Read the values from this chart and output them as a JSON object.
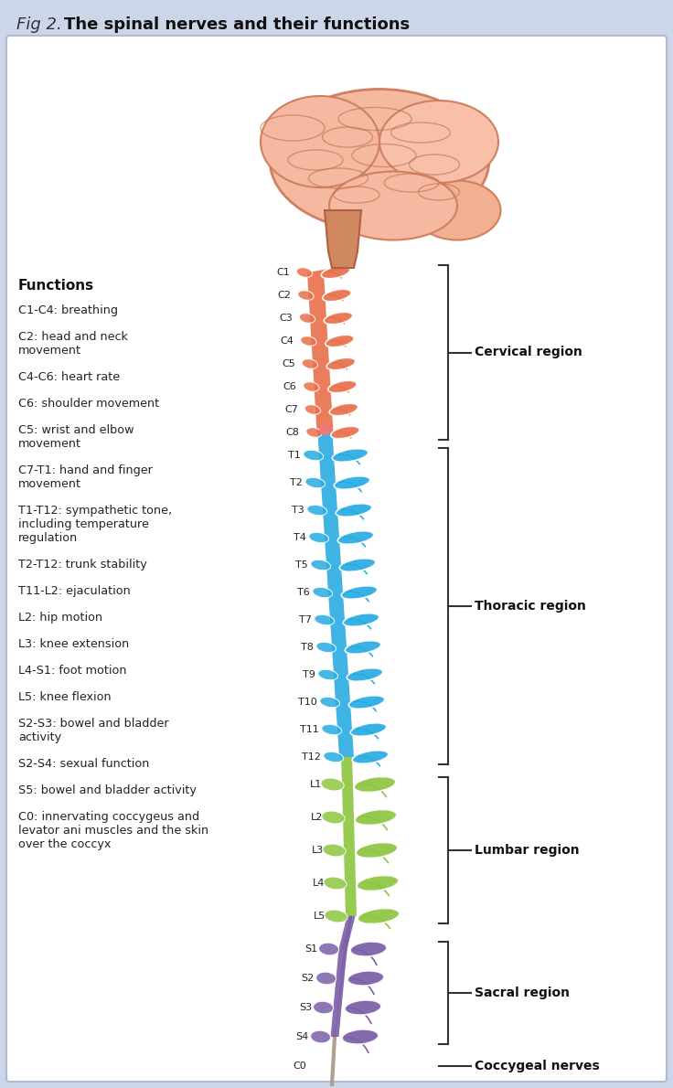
{
  "title_plain": "Fig 2. ",
  "title_bold": "The spinal nerves and their functions",
  "bg_color": "#cdd5e8",
  "panel_bg": "#ffffff",
  "functions_label": "Functions",
  "functions": [
    "C1-C4: breathing",
    "C2: head and neck\nmovement",
    "C4-C6: heart rate",
    "C6: shoulder movement",
    "C5: wrist and elbow\nmovement",
    "C7-T1: hand and finger\nmovement",
    "T1-T12: sympathetic tone,\nincluding temperature\nregulation",
    "T2-T12: trunk stability",
    "T11-L2: ejaculation",
    "L2: hip motion",
    "L3: knee extension",
    "L4-S1: foot motion",
    "L5: knee flexion",
    "S2-S3: bowel and bladder\nactivity",
    "S2-S4: sexual function",
    "S5: bowel and bladder activity",
    "C0: innervating coccygeus and\nlevator ani muscles and the skin\nover the coccyx"
  ],
  "cervical_labels": [
    "C1",
    "C2",
    "C3",
    "C4",
    "C5",
    "C6",
    "C7",
    "C8"
  ],
  "thoracic_labels": [
    "T1",
    "T2",
    "T3",
    "T4",
    "T5",
    "T6",
    "T7",
    "T8",
    "T9",
    "T10",
    "T11",
    "T12"
  ],
  "lumbar_labels": [
    "L1",
    "L2",
    "L3",
    "L4",
    "L5"
  ],
  "sacral_labels": [
    "S1",
    "S2",
    "S3",
    "S4"
  ],
  "coccygeal_labels": [
    "C0"
  ],
  "cervical_color": "#e8704a",
  "thoracic_color": "#29abe2",
  "lumbar_color": "#8dc63f",
  "sacral_color": "#7b5ea7",
  "coccygeal_color": "#b0a090",
  "cord_cervical": "#e8704a",
  "cord_thoracic": "#29abe2",
  "cord_lumbar": "#8dc63f",
  "cord_sacral": "#7b5ea7",
  "brain_main": "#f5b8a0",
  "brain_outline": "#d08060",
  "brain_gyrus": "#c07050",
  "brainstem_color": "#d08860"
}
